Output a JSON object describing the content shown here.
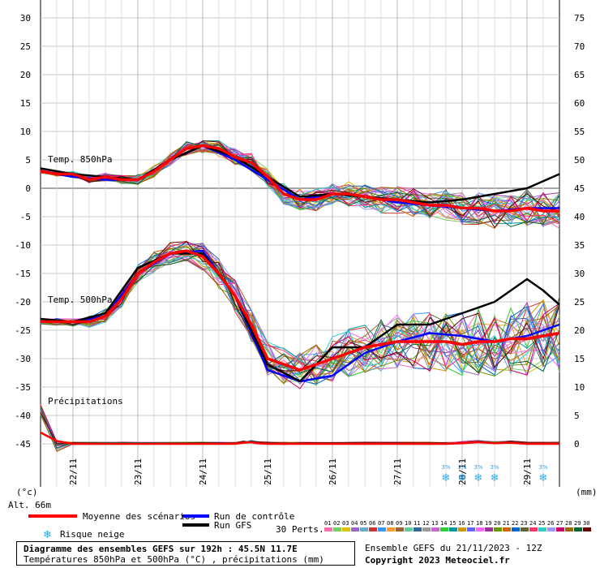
{
  "chart_data": {
    "type": "line",
    "x_ticks": [
      "22/11",
      "23/11",
      "24/11",
      "25/11",
      "26/11",
      "27/11",
      "28/11",
      "29/11"
    ],
    "y_left_ticks": [
      30,
      25,
      20,
      15,
      10,
      5,
      0,
      -5,
      -10,
      -15,
      -20,
      -25,
      -30,
      -35,
      -40,
      -45
    ],
    "y_right_ticks": [
      75,
      70,
      65,
      60,
      55,
      50,
      45,
      40,
      35,
      30,
      25,
      20,
      15,
      10,
      5,
      0
    ],
    "y_left_unit": "(°c)",
    "y_right_unit": "(mm)",
    "altitude": "Alt. 66m",
    "ylim": [
      -45,
      30
    ],
    "xlim_hours": [
      0,
      192
    ],
    "labels": {
      "t850": "Temp. 850hPa",
      "t500": "Temp. 500hPa",
      "precip": "Précipitations"
    },
    "series": [
      {
        "name": "Moyenne des scénarios",
        "role": "mean850",
        "x": [
          0,
          6,
          12,
          18,
          24,
          30,
          36,
          42,
          48,
          54,
          60,
          66,
          72,
          78,
          84,
          90,
          96,
          102,
          108,
          114,
          120,
          126,
          132,
          138,
          144,
          150,
          156,
          162,
          168,
          174,
          180,
          186,
          192
        ],
        "y": [
          3,
          2.5,
          2.5,
          1.5,
          2,
          1.5,
          1.5,
          3,
          5,
          7,
          7.5,
          7,
          5.5,
          4.5,
          2,
          -1,
          -2,
          -2,
          -1,
          -1,
          -1.5,
          -2,
          -2,
          -2.5,
          -3,
          -3,
          -3.5,
          -3.5,
          -4,
          -4,
          -3.5,
          -4,
          -4
        ]
      },
      {
        "name": "Run de contrôle",
        "role": "ctrl850",
        "x": [
          0,
          12,
          24,
          36,
          48,
          60,
          72,
          84,
          96,
          108,
          120,
          132,
          144,
          156,
          168,
          180,
          192
        ],
        "y": [
          3,
          2,
          1.5,
          1.5,
          5,
          7.5,
          5,
          1.5,
          -2,
          -1,
          -1.5,
          -2.5,
          -3,
          -3.5,
          -4,
          -3.5,
          -3.5
        ]
      },
      {
        "name": "Run GFS",
        "role": "gfs850",
        "x": [
          0,
          12,
          24,
          36,
          48,
          60,
          72,
          84,
          96,
          108,
          120,
          132,
          144,
          156,
          168,
          180,
          192
        ],
        "y": [
          3.5,
          2.5,
          2,
          1.5,
          5,
          7.5,
          5.5,
          2,
          -1.5,
          -1,
          -1.5,
          -2,
          -2.5,
          -2,
          -1,
          0,
          2.5
        ]
      },
      {
        "name": "Moyenne des scénarios",
        "role": "mean500",
        "x": [
          0,
          6,
          12,
          18,
          24,
          30,
          36,
          42,
          48,
          54,
          60,
          66,
          72,
          78,
          84,
          90,
          96,
          102,
          108,
          114,
          120,
          126,
          132,
          138,
          144,
          150,
          156,
          162,
          168,
          174,
          180,
          186,
          192
        ],
        "y": [
          -23.5,
          -23.5,
          -23.5,
          -23.5,
          -22.5,
          -19.5,
          -15,
          -13,
          -11.5,
          -11,
          -12,
          -15,
          -19,
          -24,
          -30,
          -31,
          -32,
          -31,
          -30,
          -29,
          -28,
          -27.5,
          -27,
          -27,
          -27,
          -27,
          -27.5,
          -27,
          -27,
          -26.5,
          -26.5,
          -26,
          -25.5
        ]
      },
      {
        "name": "Run de contrôle",
        "role": "ctrl500",
        "x": [
          0,
          12,
          24,
          36,
          48,
          60,
          72,
          84,
          96,
          108,
          120,
          132,
          144,
          156,
          168,
          180,
          192
        ],
        "y": [
          -23.5,
          -23.5,
          -22.5,
          -15,
          -11.5,
          -11,
          -19,
          -32,
          -34,
          -33,
          -29,
          -27,
          -25.5,
          -26,
          -27,
          -26,
          -24
        ]
      },
      {
        "name": "Run GFS",
        "role": "gfs500",
        "x": [
          0,
          12,
          24,
          36,
          48,
          60,
          72,
          84,
          96,
          108,
          120,
          132,
          144,
          156,
          168,
          174,
          180,
          186,
          192
        ],
        "y": [
          -23,
          -23.5,
          -22,
          -14,
          -11.5,
          -11.5,
          -19,
          -31,
          -34,
          -28,
          -28,
          -24,
          -24,
          -22,
          -20,
          -18,
          -16,
          -18,
          -20.5
        ]
      },
      {
        "name": "Précipitations moyenne",
        "role": "precip",
        "x": [
          0,
          6,
          12,
          30,
          60,
          72,
          75,
          78,
          80,
          84,
          90,
          96,
          120,
          144,
          150,
          156,
          162,
          168,
          174,
          180,
          186,
          192
        ],
        "y": [
          -43,
          -44.5,
          -45,
          -45,
          -45,
          -45,
          -44.8,
          -44.7,
          -44.9,
          -45,
          -45,
          -45,
          -45,
          -45,
          -45,
          -44.9,
          -44.7,
          -44.9,
          -44.8,
          -45,
          -45,
          -45
        ]
      }
    ],
    "snow_risk_x": [
      150,
      156,
      162,
      168,
      186
    ],
    "snow_risk_label": "3%",
    "legend": {
      "mean": "Moyenne des scénarios",
      "control": "Run de contrôle",
      "gfs": "Run GFS",
      "snow": "Risque neige",
      "perts": "30 Perts.",
      "pert_numbers": [
        "01",
        "02",
        "03",
        "04",
        "05",
        "06",
        "07",
        "08",
        "09",
        "10",
        "11",
        "12",
        "13",
        "14",
        "15",
        "16",
        "17",
        "18",
        "19",
        "20",
        "21",
        "22",
        "23",
        "24",
        "25",
        "26",
        "27",
        "28",
        "29",
        "30"
      ]
    },
    "colors": {
      "mean": "#ff0000",
      "control": "#0000ff",
      "gfs": "#000000",
      "perts": [
        "#ff6fa8",
        "#7acc66",
        "#e0c000",
        "#9966cc",
        "#66aacc",
        "#cc3333",
        "#3399ff",
        "#ff9933",
        "#996633",
        "#66cc99",
        "#336699",
        "#999999",
        "#cc66cc",
        "#33cc33",
        "#009999",
        "#cc9900",
        "#6666ff",
        "#ff66ff",
        "#993399",
        "#669900",
        "#cc6600",
        "#0066cc",
        "#666633",
        "#ff3366",
        "#33cccc",
        "#9999ff",
        "#cc0066",
        "#996600",
        "#006633",
        "#660000"
      ]
    }
  },
  "footer": {
    "title": "Diagramme des ensembles GEFS sur 192h : 45.5N 11.7E",
    "subtitle": "Températures 850hPa et 500hPa (°C) , précipitations (mm)",
    "run": "Ensemble GEFS du 21/11/2023 - 12Z",
    "copyright": "Copyright 2023 Meteociel.fr"
  }
}
